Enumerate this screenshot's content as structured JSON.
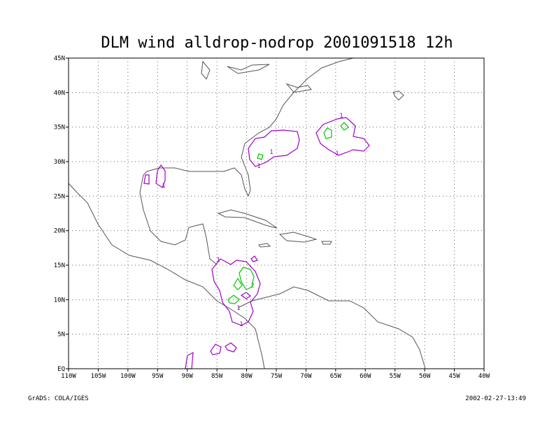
{
  "chart_data": {
    "type": "map",
    "title": "DLM wind alldrop-nodrop 2001091518 12h",
    "xlim": [
      -110,
      -40
    ],
    "ylim": [
      0,
      45
    ],
    "xticks": [
      {
        "value": -110,
        "label": "110W"
      },
      {
        "value": -105,
        "label": "105W"
      },
      {
        "value": -100,
        "label": "100W"
      },
      {
        "value": -95,
        "label": "95W"
      },
      {
        "value": -90,
        "label": "90W"
      },
      {
        "value": -85,
        "label": "85W"
      },
      {
        "value": -80,
        "label": "80W"
      },
      {
        "value": -75,
        "label": "75W"
      },
      {
        "value": -70,
        "label": "70W"
      },
      {
        "value": -65,
        "label": "65W"
      },
      {
        "value": -60,
        "label": "60W"
      },
      {
        "value": -55,
        "label": "55W"
      },
      {
        "value": -50,
        "label": "50W"
      },
      {
        "value": -45,
        "label": "45W"
      },
      {
        "value": -40,
        "label": "40W"
      }
    ],
    "yticks": [
      {
        "value": 0,
        "label": "EQ"
      },
      {
        "value": 5,
        "label": "5N"
      },
      {
        "value": 10,
        "label": "10N"
      },
      {
        "value": 15,
        "label": "15N"
      },
      {
        "value": 20,
        "label": "20N"
      },
      {
        "value": 25,
        "label": "25N"
      },
      {
        "value": 30,
        "label": "30N"
      },
      {
        "value": 35,
        "label": "35N"
      },
      {
        "value": 40,
        "label": "40N"
      },
      {
        "value": 45,
        "label": "45N"
      }
    ],
    "grid": true,
    "contour_labels": [
      "1",
      "1",
      "1",
      "1",
      "1",
      "1",
      "2",
      "1",
      "1"
    ],
    "footer_left": "GrADS: COLA/IGES",
    "footer_right": "2002-02-27-13:49"
  }
}
